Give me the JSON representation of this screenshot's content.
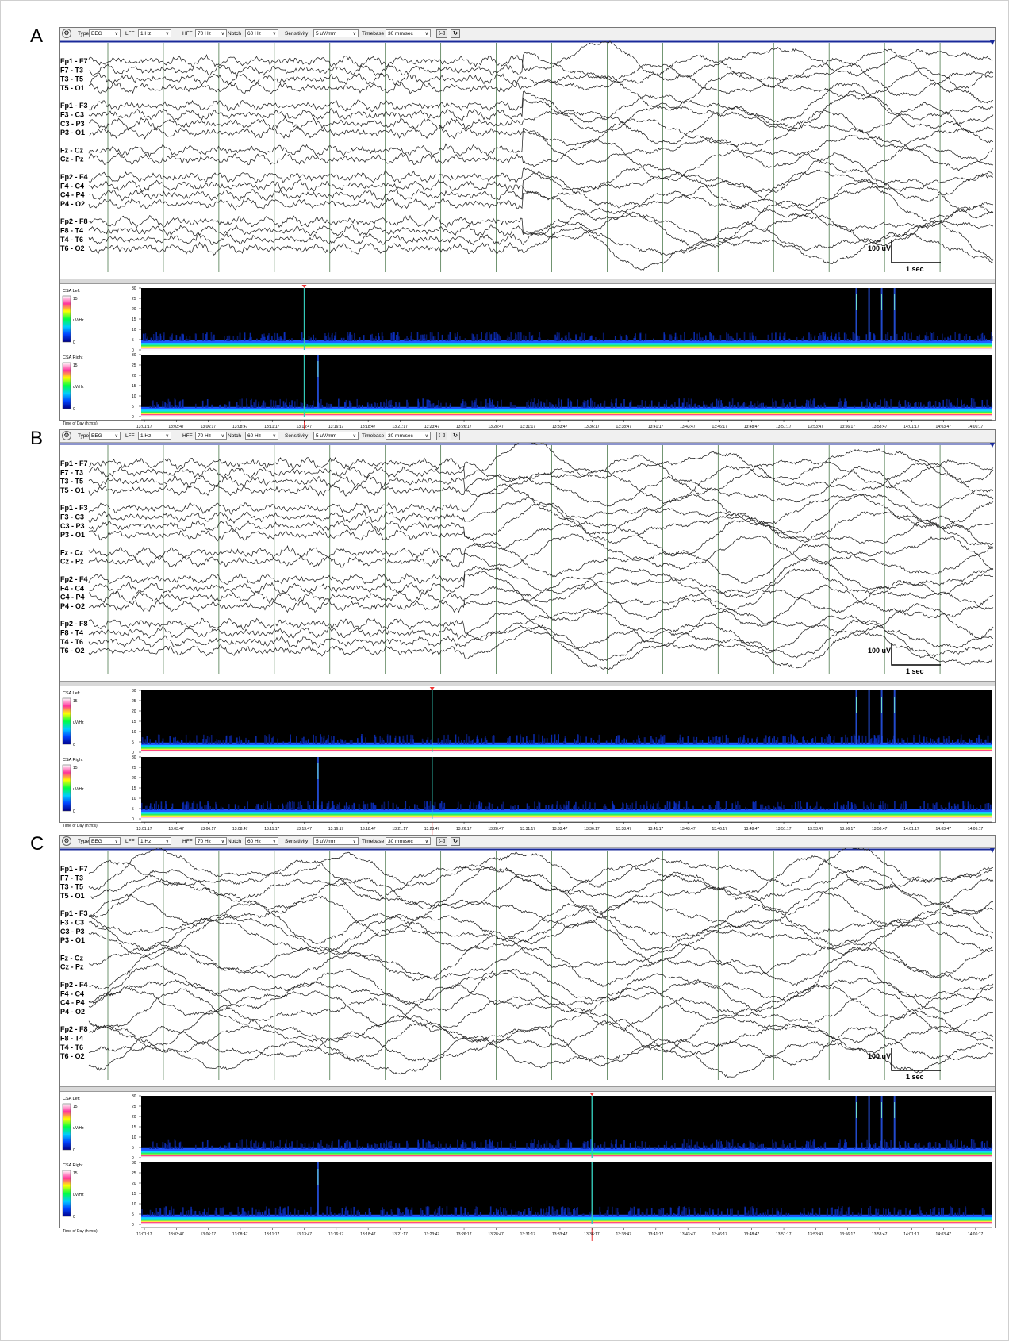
{
  "toolbar": {
    "type_label": "Type",
    "type_value": "EEG",
    "lff_label": "LFF",
    "lff_value": "1 Hz",
    "hff_label": "HFF",
    "hff_value": "70 Hz",
    "notch_label": "Notch",
    "notch_value": "60 Hz",
    "sensitivity_label": "Sensitivity",
    "sensitivity_value": "5 uV/mm",
    "timebase_label": "Timebase",
    "timebase_value": "30 mm/sec",
    "btn_ellipsis": "[...]",
    "btn_refresh": "↻"
  },
  "channels": [
    [
      "Fp1 - F7",
      "F7 - T3",
      "T3 - T5",
      "T5 - O1"
    ],
    [
      "Fp1 - F3",
      "F3 - C3",
      "C3 - P3",
      "P3 - O1"
    ],
    [
      "Fz - Cz",
      "Cz - Pz"
    ],
    [
      "Fp2 - F4",
      "F4 - C4",
      "C4 - P4",
      "P4 - O2"
    ],
    [
      "Fp2 - F8",
      "F8 - T4",
      "T4 - T6",
      "T6 - O2"
    ]
  ],
  "scale": {
    "amplitude": "100 uV",
    "time": "1 sec"
  },
  "csa": {
    "left_label": "CSA Left",
    "right_label": "CSA Right",
    "unit": "uV/Hz",
    "color_max": "15",
    "color_min": "0",
    "time_label": "Time of Day (h:m:s)",
    "y_ticks": [
      "30",
      "25",
      "20",
      "15",
      "10",
      "5",
      "0"
    ],
    "time_ticks": [
      "13:01:17",
      "13:03:47",
      "13:06:17",
      "13:08:47",
      "13:11:17",
      "13:13:47",
      "13:16:17",
      "13:18:47",
      "13:21:17",
      "13:23:47",
      "13:26:17",
      "13:28:47",
      "13:31:17",
      "13:33:47",
      "13:36:17",
      "13:38:47",
      "13:41:17",
      "13:43:47",
      "13:46:17",
      "13:48:47",
      "13:51:17",
      "13:53:47",
      "13:56:17",
      "13:58:47",
      "14:01:17",
      "14:03:47",
      "14:06:17"
    ]
  },
  "panels": [
    {
      "letter": "A",
      "cursor_time": "13:13:47",
      "onset_fraction": 0.48
    },
    {
      "letter": "B",
      "cursor_time": "13:23:47",
      "onset_fraction": 0.415
    },
    {
      "letter": "C",
      "cursor_time": "13:36:17",
      "onset_fraction": 0.0
    }
  ]
}
